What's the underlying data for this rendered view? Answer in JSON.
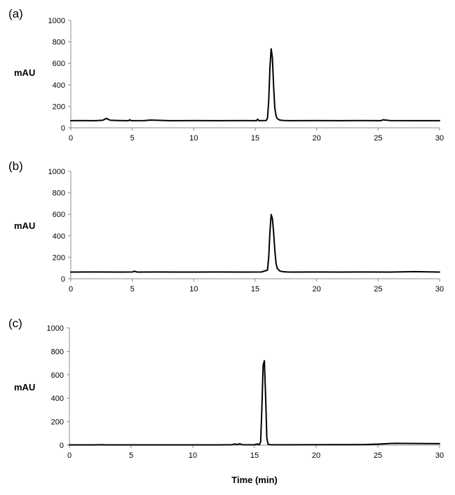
{
  "chart_data": [
    {
      "type": "line",
      "panel_label": "(a)",
      "ylabel": "mAU",
      "xlabel": "",
      "xlim": [
        0,
        30
      ],
      "ylim": [
        0,
        1000
      ],
      "x_ticks": [
        "0",
        "5",
        "10",
        "15",
        "20",
        "25",
        "30"
      ],
      "y_ticks": [
        "0",
        "200",
        "400",
        "600",
        "800",
        "1000"
      ],
      "grid": false,
      "series": [
        {
          "color": "#000000",
          "x": [
            0,
            1,
            2,
            2.6,
            2.9,
            3.2,
            4,
            4.7,
            4.8,
            4.9,
            6,
            6.5,
            8,
            10,
            12,
            14,
            15.1,
            15.2,
            15.3,
            15.6,
            15.9,
            16.0,
            16.1,
            16.2,
            16.3,
            16.4,
            16.5,
            16.6,
            16.7,
            16.8,
            17.0,
            17.3,
            17.6,
            18,
            20,
            22,
            24,
            25.2,
            25.4,
            26,
            28,
            30
          ],
          "y": [
            66,
            67,
            66,
            70,
            87,
            70,
            67,
            66,
            75,
            66,
            67,
            72,
            66,
            67,
            66,
            67,
            66,
            80,
            66,
            67,
            68,
            90,
            250,
            560,
            735,
            650,
            380,
            180,
            110,
            85,
            72,
            68,
            67,
            66,
            67,
            66,
            67,
            66,
            74,
            67,
            66,
            66
          ]
        }
      ]
    },
    {
      "type": "line",
      "panel_label": "(b)",
      "ylabel": "mAU",
      "xlabel": "",
      "xlim": [
        0,
        30
      ],
      "ylim": [
        0,
        1000
      ],
      "x_ticks": [
        "0",
        "5",
        "10",
        "15",
        "20",
        "25",
        "30"
      ],
      "y_ticks": [
        "0",
        "200",
        "400",
        "600",
        "800",
        "1000"
      ],
      "grid": false,
      "series": [
        {
          "color": "#000000",
          "x": [
            0,
            2,
            4,
            5,
            5.2,
            5.4,
            7,
            10,
            12,
            14,
            15.5,
            16.0,
            16.1,
            16.2,
            16.3,
            16.4,
            16.5,
            16.6,
            16.7,
            16.8,
            17.0,
            17.3,
            17.6,
            18,
            20,
            22,
            24,
            26,
            28,
            30
          ],
          "y": [
            62,
            63,
            62,
            63,
            70,
            62,
            63,
            62,
            63,
            62,
            63,
            80,
            200,
            440,
            598,
            560,
            430,
            260,
            140,
            95,
            72,
            65,
            63,
            62,
            63,
            62,
            63,
            62,
            66,
            62
          ]
        }
      ]
    },
    {
      "type": "line",
      "panel_label": "(c)",
      "ylabel": "mAU",
      "xlabel": "Time (min)",
      "xlim": [
        0,
        30
      ],
      "ylim": [
        0,
        1000
      ],
      "x_ticks": [
        "0",
        "5",
        "10",
        "15",
        "20",
        "25",
        "30"
      ],
      "y_ticks": [
        "0",
        "200",
        "400",
        "600",
        "800",
        "1000"
      ],
      "grid": false,
      "series": [
        {
          "color": "#000000",
          "x": [
            0,
            2,
            2.6,
            3,
            5,
            8,
            10,
            12,
            13.2,
            13.4,
            13.6,
            13.8,
            14.0,
            15.0,
            15.2,
            15.4,
            15.5,
            15.6,
            15.7,
            15.8,
            15.9,
            16.0,
            16.1,
            16.3,
            17,
            20,
            24,
            25.2,
            26,
            26.5,
            27,
            28,
            30
          ],
          "y": [
            2,
            2,
            4,
            2,
            2,
            2,
            2,
            2,
            4,
            10,
            5,
            12,
            4,
            3,
            10,
            3,
            30,
            320,
            680,
            720,
            420,
            60,
            8,
            4,
            3,
            4,
            5,
            10,
            14,
            16,
            15,
            14,
            13
          ]
        }
      ]
    }
  ]
}
